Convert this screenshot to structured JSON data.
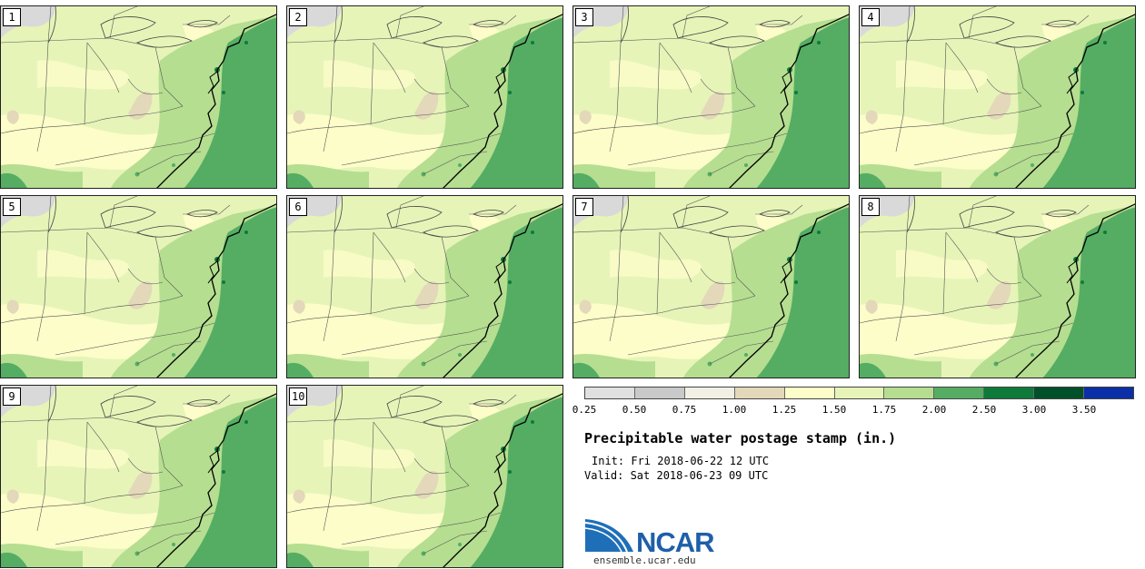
{
  "panels": [
    {
      "label": "1"
    },
    {
      "label": "2"
    },
    {
      "label": "3"
    },
    {
      "label": "4"
    },
    {
      "label": "5"
    },
    {
      "label": "6"
    },
    {
      "label": "7"
    },
    {
      "label": "8"
    },
    {
      "label": "9"
    },
    {
      "label": "10"
    }
  ],
  "colorbar": {
    "colors": [
      "#e0e0e0",
      "#c9c9c9",
      "#f2f0e4",
      "#e3d8b9",
      "#fdfdc9",
      "#e6f4b8",
      "#b5de90",
      "#55ad63",
      "#0e7a3a",
      "#00502a",
      "#0a2fa7"
    ],
    "ticks": [
      "0.25",
      "0.50",
      "0.75",
      "1.00",
      "1.25",
      "1.50",
      "1.75",
      "2.00",
      "2.50",
      "3.00",
      "3.50"
    ]
  },
  "title": "Precipitable water postage stamp (in.)",
  "init": "Init: Fri 2018-06-22 12 UTC",
  "valid": "Valid: Sat 2018-06-23 09 UTC",
  "logo_text": "NCAR",
  "site": "ensemble.ucar.edu"
}
